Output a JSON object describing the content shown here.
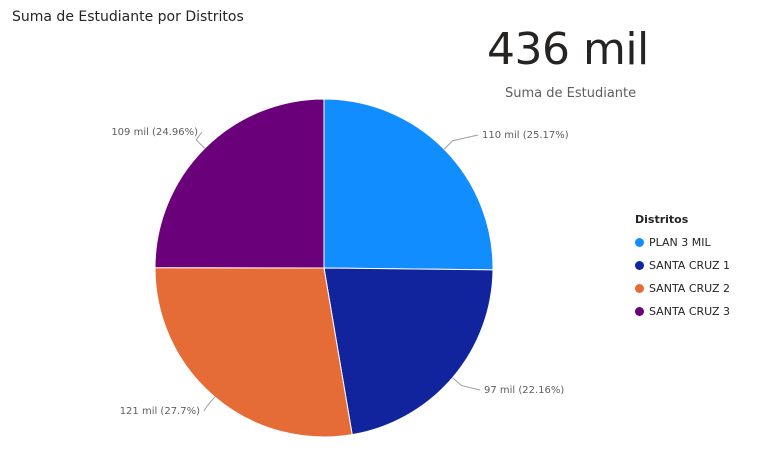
{
  "header": {
    "title": "Suma de Estudiante por Distritos"
  },
  "kpi": {
    "value": "436 mil",
    "label": "Suma de Estudiante"
  },
  "legend": {
    "title": "Distritos"
  },
  "chart_data": {
    "type": "pie",
    "title": "Suma de Estudiante por Distritos",
    "slices": [
      {
        "name": "PLAN 3 MIL",
        "value": 110,
        "percent": 25.17,
        "label": "110 mil (25.17%)",
        "color": "#118DFF"
      },
      {
        "name": "SANTA CRUZ 1",
        "value": 97,
        "percent": 22.16,
        "label": "97 mil (22.16%)",
        "color": "#12239E"
      },
      {
        "name": "SANTA CRUZ 2",
        "value": 121,
        "percent": 27.7,
        "label": "121 mil (27.7%)",
        "color": "#E66C37"
      },
      {
        "name": "SANTA CRUZ 3",
        "value": 109,
        "percent": 24.96,
        "label": "109 mil (24.96%)",
        "color": "#6B007B"
      }
    ],
    "legend_placement": "right",
    "unit": "mil"
  }
}
